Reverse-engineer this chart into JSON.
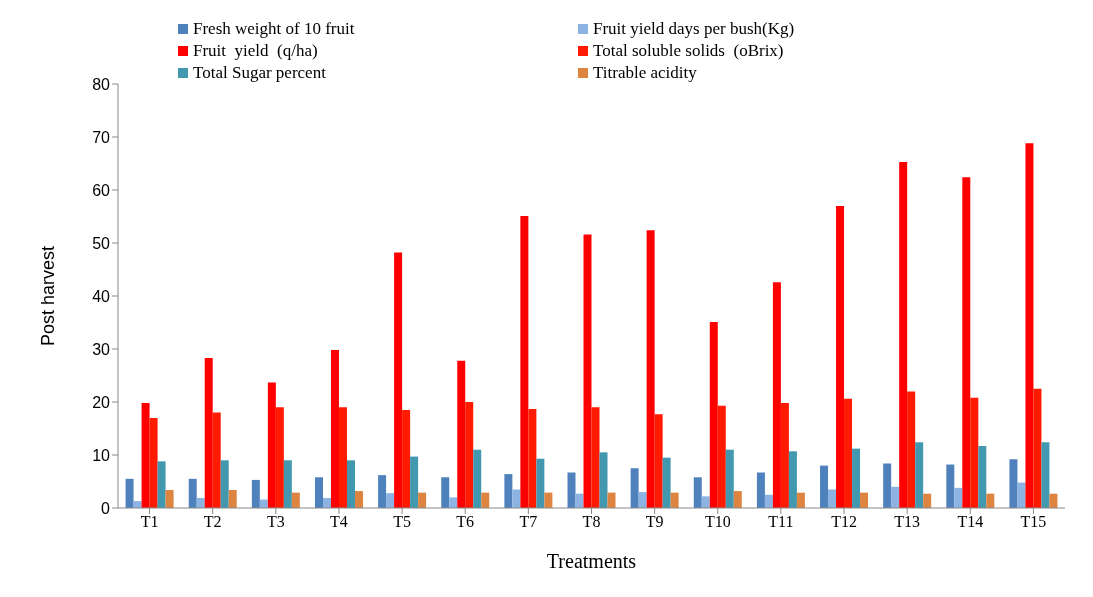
{
  "chart_data": {
    "type": "bar",
    "xlabel": "Treatments",
    "ylabel": "Post harvest",
    "categories": [
      "T1",
      "T2",
      "T3",
      "T4",
      "T5",
      "T6",
      "T7",
      "T8",
      "T9",
      "T10",
      "T11",
      "T12",
      "T13",
      "T14",
      "T15"
    ],
    "series": [
      {
        "name": "Fresh weight of 10 fruit",
        "color": "#4f81bd",
        "values": [
          5.5,
          5.5,
          5.3,
          5.8,
          6.2,
          5.8,
          6.4,
          6.7,
          7.5,
          5.8,
          6.7,
          8.0,
          8.4,
          8.2,
          9.2
        ]
      },
      {
        "name": "Fruit yield days per bush(Kg)",
        "color": "#8db3e2",
        "values": [
          1.3,
          1.9,
          1.6,
          1.9,
          2.8,
          2.0,
          3.5,
          2.7,
          3.0,
          2.2,
          2.5,
          3.5,
          4.0,
          3.8,
          4.8
        ]
      },
      {
        "name": "Fruit  yield  (q/ha)",
        "color": "#ff0000",
        "values": [
          19.8,
          28.3,
          23.7,
          29.8,
          48.2,
          27.8,
          55.1,
          51.6,
          52.4,
          35.1,
          42.6,
          57.0,
          65.3,
          62.4,
          68.8
        ]
      },
      {
        "name": "Total soluble solids  (oBrix)",
        "color": "#ff1a00",
        "values": [
          17.0,
          18.0,
          19.0,
          19.0,
          18.5,
          20.0,
          18.7,
          19.0,
          17.7,
          19.3,
          19.8,
          20.6,
          22.0,
          20.8,
          22.5
        ]
      },
      {
        "name": "Total Sugar percent",
        "color": "#4198af",
        "values": [
          8.8,
          9.0,
          9.0,
          9.0,
          9.7,
          11.0,
          9.3,
          10.5,
          9.5,
          11.0,
          10.7,
          11.2,
          12.4,
          11.7,
          12.4
        ]
      },
      {
        "name": "Titrable acidity",
        "color": "#dd8540",
        "values": [
          3.4,
          3.4,
          2.9,
          3.2,
          2.9,
          2.9,
          2.9,
          2.9,
          2.9,
          3.2,
          2.9,
          2.9,
          2.7,
          2.7,
          2.7
        ]
      }
    ],
    "ylim": [
      0,
      80
    ],
    "yticks": [
      0,
      10,
      20,
      30,
      40,
      50,
      60,
      70,
      80
    ],
    "grid": false,
    "legend": "top"
  }
}
